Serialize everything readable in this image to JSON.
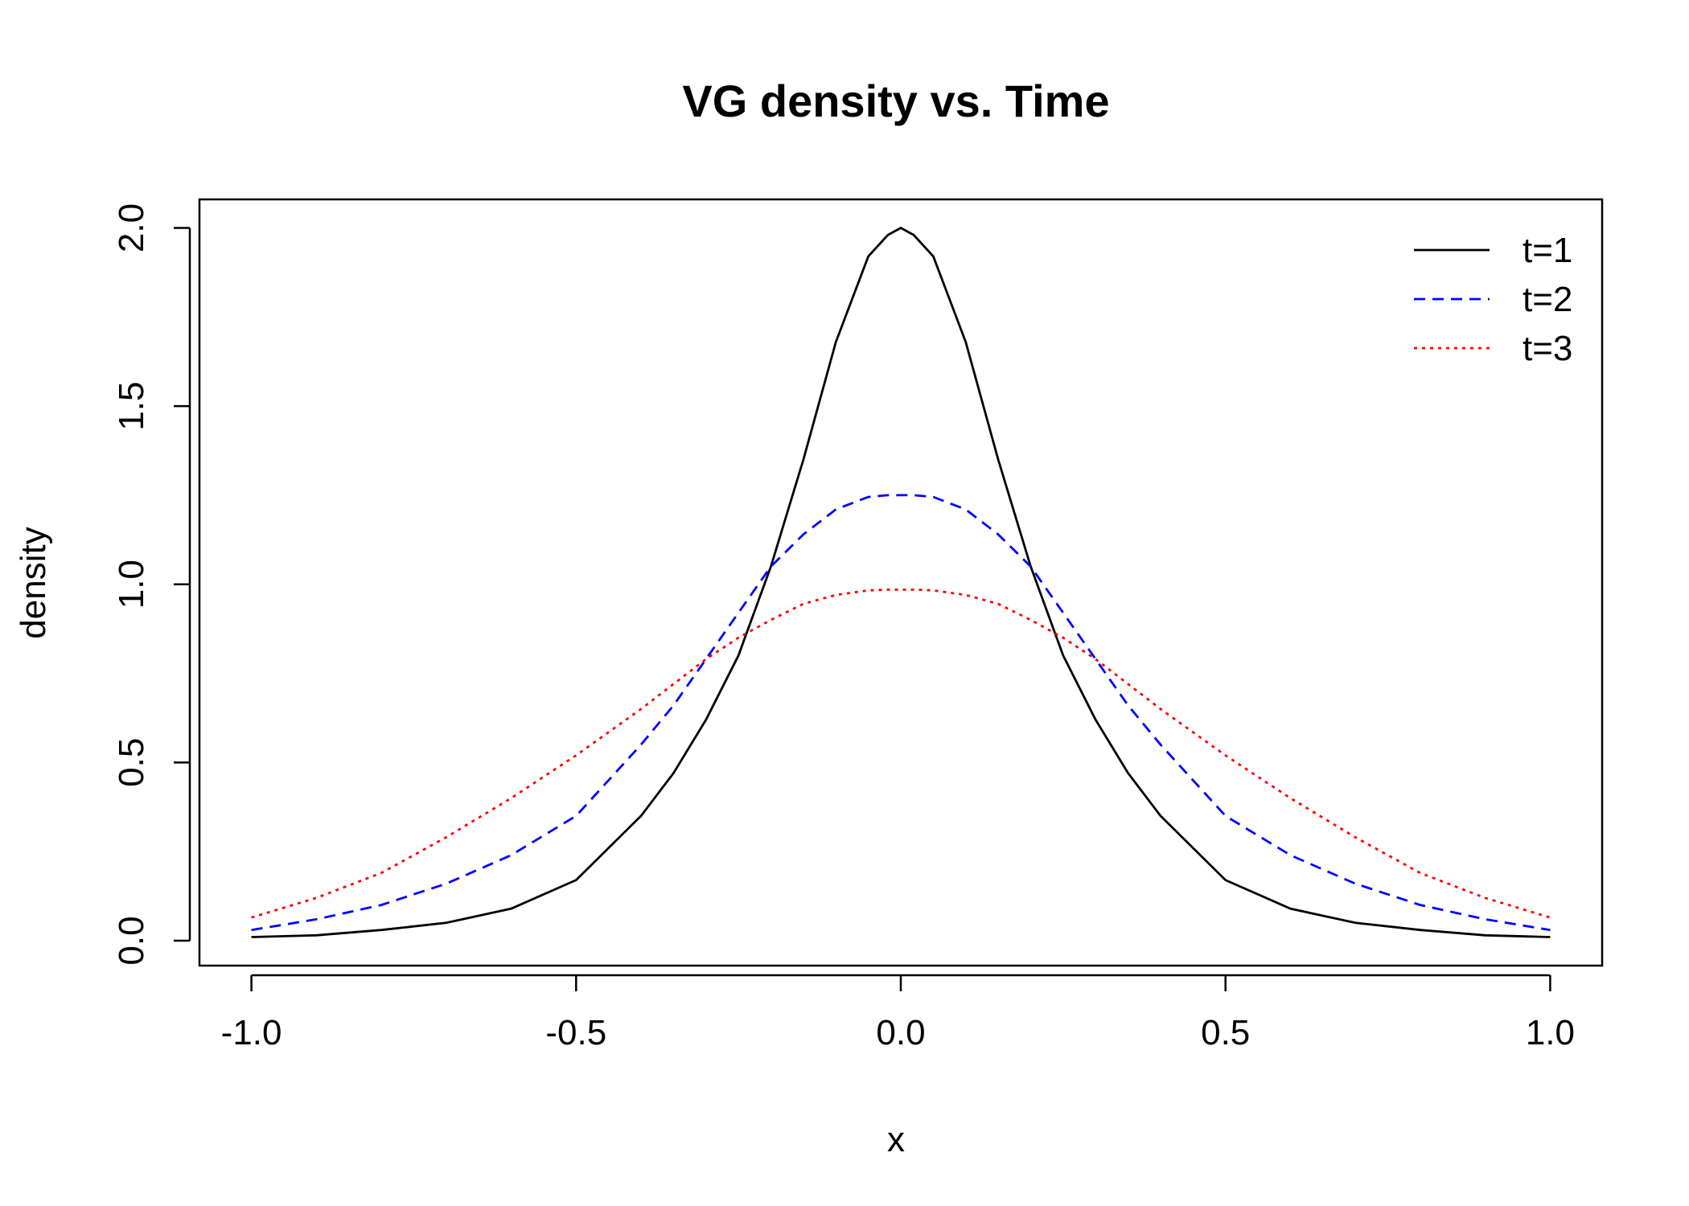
{
  "chart_data": {
    "type": "line",
    "title": "VG density vs. Time",
    "xlabel": "x",
    "ylabel": "density",
    "xlim": [
      -1.08,
      1.08
    ],
    "ylim": [
      -0.07,
      2.08
    ],
    "x_ticks": [
      -1.0,
      -0.5,
      0.0,
      0.5,
      1.0
    ],
    "x_tick_labels": [
      "-1.0",
      "-0.5",
      "0.0",
      "0.5",
      "1.0"
    ],
    "y_ticks": [
      0.0,
      0.5,
      1.0,
      1.5,
      2.0
    ],
    "y_tick_labels": [
      "0.0",
      "0.5",
      "1.0",
      "1.5",
      "2.0"
    ],
    "grid": false,
    "legend": {
      "position": "top-right",
      "frame": false
    },
    "x": [
      -1.0,
      -0.9,
      -0.8,
      -0.7,
      -0.6,
      -0.5,
      -0.4,
      -0.35,
      -0.3,
      -0.25,
      -0.2,
      -0.15,
      -0.1,
      -0.05,
      -0.02,
      0.0,
      0.02,
      0.05,
      0.1,
      0.15,
      0.2,
      0.25,
      0.3,
      0.35,
      0.4,
      0.5,
      0.6,
      0.7,
      0.8,
      0.9,
      1.0
    ],
    "series": [
      {
        "name": "t=1",
        "color": "#000000",
        "dash": "solid",
        "values": [
          0.01,
          0.015,
          0.03,
          0.05,
          0.09,
          0.17,
          0.35,
          0.47,
          0.62,
          0.8,
          1.05,
          1.35,
          1.68,
          1.92,
          1.98,
          2.0,
          1.98,
          1.92,
          1.68,
          1.35,
          1.05,
          0.8,
          0.62,
          0.47,
          0.35,
          0.17,
          0.09,
          0.05,
          0.03,
          0.015,
          0.01
        ]
      },
      {
        "name": "t=2",
        "color": "#0000ff",
        "dash": "dashed",
        "values": [
          0.03,
          0.06,
          0.1,
          0.16,
          0.24,
          0.35,
          0.55,
          0.66,
          0.79,
          0.92,
          1.05,
          1.14,
          1.21,
          1.245,
          1.25,
          1.25,
          1.25,
          1.245,
          1.21,
          1.14,
          1.05,
          0.92,
          0.79,
          0.66,
          0.55,
          0.35,
          0.24,
          0.16,
          0.1,
          0.06,
          0.03
        ]
      },
      {
        "name": "t=3",
        "color": "#ff0000",
        "dash": "dotted",
        "values": [
          0.065,
          0.12,
          0.19,
          0.29,
          0.4,
          0.52,
          0.65,
          0.72,
          0.79,
          0.85,
          0.9,
          0.945,
          0.97,
          0.983,
          0.985,
          0.985,
          0.985,
          0.983,
          0.97,
          0.945,
          0.9,
          0.85,
          0.79,
          0.72,
          0.65,
          0.52,
          0.4,
          0.29,
          0.19,
          0.12,
          0.065
        ]
      }
    ]
  }
}
